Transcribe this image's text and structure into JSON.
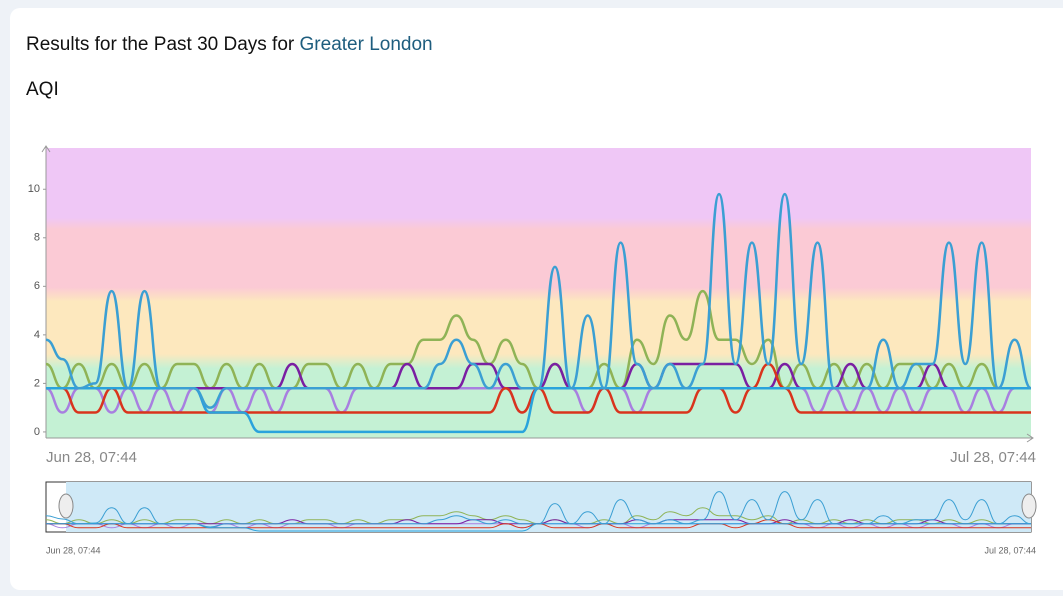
{
  "header": {
    "title": "Results for the Past 30 Days for",
    "location": "Greater London"
  },
  "chart_data": {
    "type": "line",
    "title": "AQI",
    "categories": [
      "Jun 28, 07:44",
      null,
      null,
      null,
      null,
      null,
      null,
      null,
      null,
      null,
      null,
      null,
      null,
      null,
      null,
      null,
      null,
      null,
      null,
      null,
      null,
      null,
      null,
      null,
      null,
      null,
      null,
      null,
      null,
      null,
      null,
      null,
      null,
      null,
      null,
      null,
      null,
      null,
      null,
      null,
      null,
      null,
      null,
      null,
      null,
      null,
      null,
      null,
      null,
      null,
      null,
      null,
      null,
      null,
      null,
      null,
      null,
      null,
      null,
      null,
      "Jul 28, 07:44"
    ],
    "ylim": [
      -0.25,
      11.7
    ],
    "yticks": [
      0,
      2,
      4,
      6,
      8,
      10
    ],
    "series": [
      {
        "color": "#8fb356",
        "values": [
          2.8,
          1.8,
          2.8,
          1.8,
          2.8,
          1.8,
          2.8,
          1.8,
          2.8,
          2.8,
          1.8,
          2.8,
          1.8,
          2.8,
          1.8,
          1.8,
          2.8,
          2.8,
          1.8,
          2.8,
          1.8,
          2.8,
          2.8,
          3.8,
          3.8,
          4.8,
          3.8,
          2.8,
          3.8,
          2.8,
          1.8,
          2.8,
          1.8,
          1.8,
          2.8,
          1.8,
          3.8,
          2.8,
          4.8,
          3.8,
          5.8,
          3.8,
          3.8,
          2.8,
          3.8,
          1.8,
          2.8,
          1.8,
          2.8,
          1.8,
          2.8,
          1.8,
          2.8,
          2.8,
          1.8,
          2.8,
          1.8,
          2.8,
          1.8,
          1.8,
          1.8
        ]
      },
      {
        "color": "#a87fe0",
        "values": [
          1.8,
          0.8,
          1.8,
          1.8,
          0.8,
          1.8,
          0.8,
          1.8,
          0.8,
          1.8,
          0.8,
          1.8,
          0.8,
          1.8,
          0.8,
          1.8,
          1.8,
          1.8,
          0.8,
          1.8,
          1.8,
          1.8,
          1.8,
          1.8,
          1.8,
          1.8,
          1.8,
          1.8,
          1.8,
          0.8,
          1.8,
          1.8,
          1.8,
          0.8,
          1.8,
          1.8,
          0.8,
          1.8,
          1.8,
          1.8,
          1.8,
          1.8,
          1.8,
          1.8,
          1.8,
          1.8,
          1.8,
          0.8,
          1.8,
          0.8,
          1.8,
          0.8,
          1.8,
          0.8,
          1.8,
          1.8,
          0.8,
          1.8,
          0.8,
          1.8,
          1.8
        ]
      },
      {
        "color": "#7a1fa2",
        "values": [
          1.8,
          1.8,
          1.8,
          1.8,
          1.8,
          1.8,
          1.8,
          1.8,
          1.8,
          1.8,
          1.8,
          1.8,
          1.8,
          1.8,
          1.8,
          2.8,
          1.8,
          1.8,
          1.8,
          1.8,
          1.8,
          1.8,
          2.8,
          1.8,
          1.8,
          1.8,
          2.8,
          2.8,
          1.8,
          1.8,
          1.8,
          2.8,
          1.8,
          1.8,
          1.8,
          1.8,
          2.8,
          1.8,
          2.8,
          2.8,
          2.8,
          2.8,
          2.8,
          1.8,
          1.8,
          2.8,
          1.8,
          1.8,
          1.8,
          2.8,
          1.8,
          1.8,
          1.8,
          1.8,
          2.8,
          1.8,
          1.8,
          1.8,
          1.8,
          1.8,
          1.8
        ]
      },
      {
        "color": "#d9341c",
        "values": [
          1.8,
          1.8,
          0.8,
          0.8,
          1.8,
          0.8,
          0.8,
          0.8,
          0.8,
          0.8,
          0.8,
          0.8,
          0.8,
          0.8,
          0.8,
          0.8,
          0.8,
          0.8,
          0.8,
          0.8,
          0.8,
          0.8,
          0.8,
          0.8,
          0.8,
          0.8,
          0.8,
          0.8,
          1.8,
          0.8,
          1.8,
          0.8,
          0.8,
          0.8,
          1.8,
          0.8,
          0.8,
          0.8,
          0.8,
          0.8,
          1.8,
          1.8,
          0.8,
          1.8,
          2.8,
          1.8,
          0.8,
          0.8,
          0.8,
          0.8,
          0.8,
          0.8,
          0.8,
          0.8,
          0.8,
          0.8,
          0.8,
          0.8,
          0.8,
          0.8,
          0.8
        ]
      },
      {
        "color": "#29a3dc",
        "values": [
          1.8,
          1.8,
          1.8,
          1.8,
          1.8,
          1.8,
          1.8,
          1.8,
          1.8,
          1.8,
          0.8,
          0.8,
          0.8,
          0,
          0,
          0,
          0,
          0,
          0,
          0,
          0,
          0,
          0,
          0,
          0,
          0,
          0,
          0,
          0,
          0,
          1.8,
          1.8,
          1.8,
          1.8,
          1.8,
          1.8,
          1.8,
          1.8,
          1.8,
          1.8,
          1.8,
          1.8,
          1.8,
          1.8,
          1.8,
          1.8,
          1.8,
          1.8,
          1.8,
          1.8,
          1.8,
          1.8,
          1.8,
          1.8,
          1.8,
          1.8,
          1.8,
          1.8,
          1.8,
          1.8,
          1.8
        ]
      },
      {
        "color": "#3b9fd3",
        "values": [
          3.8,
          3,
          1.8,
          2,
          5.8,
          1.8,
          5.8,
          1.8,
          1.8,
          1.8,
          1,
          1.8,
          1.8,
          1.8,
          1.8,
          1.8,
          1.8,
          1.8,
          1.8,
          1.8,
          1.8,
          1.8,
          1.8,
          1.8,
          2.8,
          3.8,
          2.8,
          1.8,
          2.8,
          1.8,
          1.8,
          6.8,
          1.8,
          4.8,
          1.8,
          7.8,
          2.8,
          1.8,
          2.8,
          1.8,
          2.8,
          9.8,
          2.8,
          7.8,
          2.8,
          9.8,
          2.8,
          7.8,
          1.8,
          1.8,
          1.8,
          3.8,
          1.8,
          2.8,
          2.8,
          7.8,
          2.8,
          7.8,
          1.8,
          3.8,
          1.8
        ]
      }
    ]
  }
}
